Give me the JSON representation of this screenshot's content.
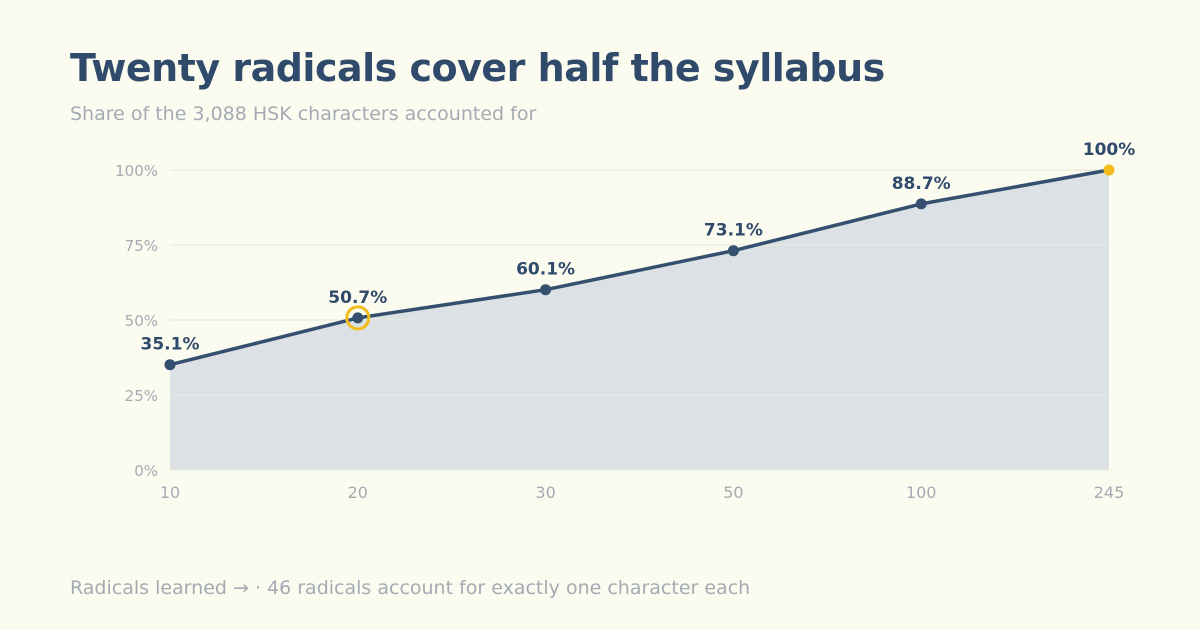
{
  "title": "Twenty radicals cover half the syllabus",
  "subtitle": "Share of the 3,088 HSK characters accounted for",
  "footer": "Radicals learned → · 46 radicals account for exactly one character each",
  "chart_data": {
    "type": "area",
    "categories": [
      "10",
      "20",
      "30",
      "50",
      "100",
      "245"
    ],
    "values": [
      35.1,
      50.7,
      60.1,
      73.1,
      88.7,
      100
    ],
    "data_labels": [
      "35.1%",
      "50.7%",
      "60.1%",
      "73.1%",
      "88.7%",
      "100%"
    ],
    "yticks": [
      "0%",
      "25%",
      "50%",
      "75%",
      "100%"
    ],
    "ylim": [
      0,
      100
    ],
    "grid": true,
    "highlight_index": 1,
    "colors": {
      "line": "#34506e",
      "area": "#dbe1e4",
      "highlight": "#f2bc1b",
      "grid": "#e8ebe0",
      "label": "#2f4a6a",
      "tick": "#a4abb3"
    }
  }
}
